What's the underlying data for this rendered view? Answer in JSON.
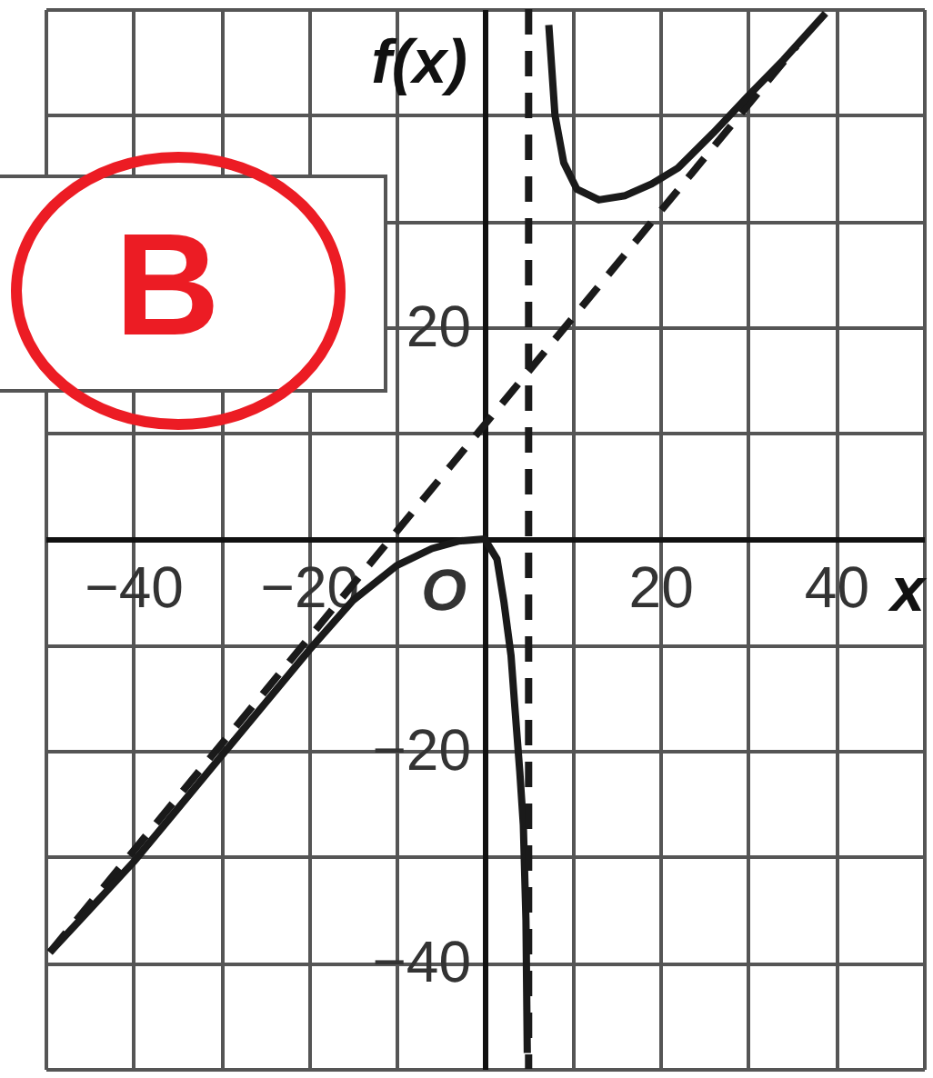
{
  "chart_data": {
    "type": "line",
    "xlabel": "x",
    "ylabel": "f(x)",
    "xlim": [
      -50,
      50
    ],
    "ylim": [
      -50,
      50
    ],
    "xticks": [
      {
        "value": -50,
        "label": null
      },
      {
        "value": -40,
        "label": "−40"
      },
      {
        "value": -30,
        "label": null
      },
      {
        "value": -20,
        "label": "−20"
      },
      {
        "value": -10,
        "label": null
      },
      {
        "value": 10,
        "label": null
      },
      20,
      {
        "value": 30,
        "label": null
      },
      40,
      {
        "value": 50,
        "label": null
      }
    ],
    "yticks": [
      {
        "value": -50,
        "label": null
      },
      {
        "value": -40,
        "label": "−40"
      },
      {
        "value": -30,
        "label": null
      },
      {
        "value": -20,
        "label": "−20"
      },
      {
        "value": -10,
        "label": null
      },
      {
        "value": 10,
        "label": null
      },
      20,
      {
        "value": 30,
        "label": null
      },
      {
        "value": 40,
        "label": null
      },
      {
        "value": 50,
        "label": null
      }
    ],
    "grid": true,
    "series": [
      {
        "line_style": "dashed",
        "color": "#1a1a1a",
        "x": [
          -49.5,
          35.5
        ],
        "values": [
          -39,
          46.5
        ]
      },
      {
        "line_style": "solid",
        "color": "#1a1a1a",
        "x": [
          -49.5,
          -45,
          -40,
          -35,
          -30,
          -25,
          -20,
          -15,
          -10,
          -6,
          -3,
          0,
          1.4,
          2.2,
          3,
          3.4,
          4,
          4.4,
          4.7,
          4.85,
          5,
          7.3,
          8,
          9,
          10.5,
          13,
          16,
          19,
          22,
          26,
          30,
          34,
          38.8
        ],
        "values": [
          -39,
          -35,
          -30.5,
          -25.5,
          -20.5,
          -15.5,
          -10.5,
          -5.8,
          -2.5,
          -0.9,
          -0.2,
          0,
          -1.9,
          -6,
          -11,
          -15.5,
          -22,
          -27,
          -36,
          -48.5,
          null,
          48.5,
          40,
          35.5,
          33,
          32,
          32.4,
          33.5,
          35,
          38.3,
          41.8,
          45.2,
          49.6
        ]
      }
    ],
    "ref_lines": [
      {
        "axis": "x",
        "value": 5,
        "line_style": "dashed",
        "color": "#1a1a1a"
      }
    ],
    "annotations": [
      {
        "text": "O",
        "x": 0,
        "y": 0
      },
      "B"
    ]
  }
}
